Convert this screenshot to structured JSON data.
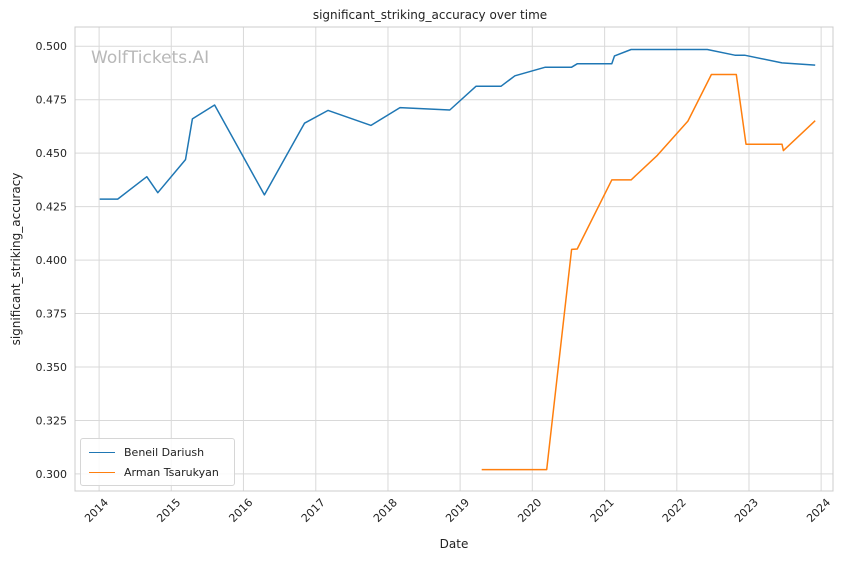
{
  "watermark": "WolfTickets.AI",
  "chart_data": {
    "type": "line",
    "title": "significant_striking_accuracy over time",
    "xlabel": "Date",
    "ylabel": "significant_striking_accuracy",
    "xlim": [
      "2013-09-01",
      "2024-03-01"
    ],
    "ylim": [
      0.292,
      0.509
    ],
    "x_ticks": [
      "2014",
      "2015",
      "2016",
      "2017",
      "2018",
      "2019",
      "2020",
      "2021",
      "2022",
      "2023",
      "2024"
    ],
    "y_ticks": [
      "0.300",
      "0.325",
      "0.350",
      "0.375",
      "0.400",
      "0.425",
      "0.450",
      "0.475",
      "0.500"
    ],
    "grid": true,
    "legend_position": "lower-left",
    "series": [
      {
        "name": "Beneil Dariush",
        "color": "#1f77b4",
        "points": [
          [
            "2014-01-04",
            0.4285
          ],
          [
            "2014-04-05",
            0.4285
          ],
          [
            "2014-08-30",
            0.439
          ],
          [
            "2014-10-25",
            0.4315
          ],
          [
            "2015-03-14",
            0.447
          ],
          [
            "2015-04-18",
            0.466
          ],
          [
            "2015-08-08",
            0.4725
          ],
          [
            "2016-04-16",
            0.4305
          ],
          [
            "2016-11-05",
            0.464
          ],
          [
            "2017-03-04",
            0.47
          ],
          [
            "2017-10-07",
            0.463
          ],
          [
            "2018-03-03",
            0.4713
          ],
          [
            "2018-11-10",
            0.4702
          ],
          [
            "2019-03-23",
            0.4813
          ],
          [
            "2019-07-27",
            0.4813
          ],
          [
            "2019-10-05",
            0.4862
          ],
          [
            "2020-03-07",
            0.4902
          ],
          [
            "2020-07-18",
            0.4902
          ],
          [
            "2020-08-15",
            0.4918
          ],
          [
            "2021-02-06",
            0.4918
          ],
          [
            "2021-02-20",
            0.4955
          ],
          [
            "2021-05-15",
            0.4985
          ],
          [
            "2022-06-04",
            0.4985
          ],
          [
            "2022-10-22",
            0.4958
          ],
          [
            "2022-12-10",
            0.4958
          ],
          [
            "2023-06-17",
            0.4922
          ],
          [
            "2023-12-02",
            0.4912
          ]
        ]
      },
      {
        "name": "Arman Tsarukyan",
        "color": "#ff7f0e",
        "points": [
          [
            "2019-04-20",
            0.302
          ],
          [
            "2020-03-14",
            0.302
          ],
          [
            "2020-07-18",
            0.405
          ],
          [
            "2020-08-15",
            0.4052
          ],
          [
            "2021-02-06",
            0.4375
          ],
          [
            "2021-05-15",
            0.4375
          ],
          [
            "2021-09-25",
            0.449
          ],
          [
            "2022-02-26",
            0.465
          ],
          [
            "2022-06-25",
            0.4868
          ],
          [
            "2022-10-29",
            0.4868
          ],
          [
            "2022-12-17",
            0.4542
          ],
          [
            "2023-06-17",
            0.4542
          ],
          [
            "2023-06-24",
            0.4512
          ],
          [
            "2023-12-02",
            0.4652
          ]
        ]
      }
    ]
  }
}
